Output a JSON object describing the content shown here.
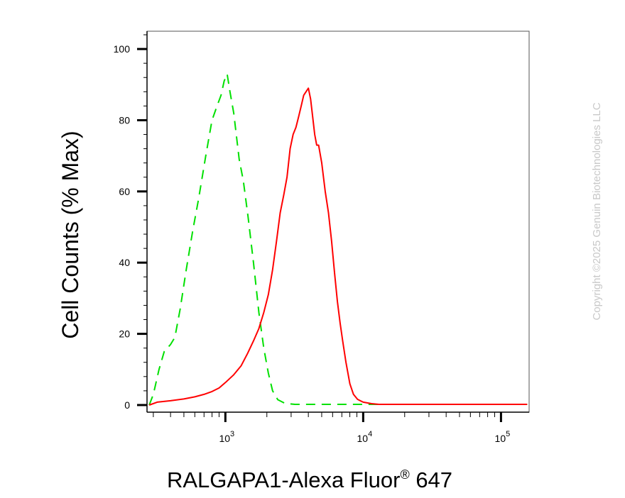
{
  "chart_data": {
    "type": "line",
    "xlabel": "RALGAPA1-Alexa Fluor",
    "xlabel_reg": "®",
    "xlabel_suffix": " 647",
    "ylabel": "Cell Counts (% Max)",
    "x_scale": "log",
    "xlim": [
      270,
      160000
    ],
    "ylim": [
      -2,
      105
    ],
    "y_ticks": [
      0,
      20,
      40,
      60,
      80,
      100
    ],
    "x_ticks": [
      {
        "value": 1000,
        "base": "10",
        "exp": "3"
      },
      {
        "value": 10000,
        "base": "10",
        "exp": "4"
      },
      {
        "value": 100000,
        "base": "10",
        "exp": "5"
      }
    ],
    "grid": false,
    "legend": "none",
    "series": [
      {
        "color": "#00e000",
        "style": "dashed",
        "points": [
          [
            280,
            0
          ],
          [
            300,
            3
          ],
          [
            330,
            10
          ],
          [
            360,
            15
          ],
          [
            400,
            17
          ],
          [
            430,
            19
          ],
          [
            470,
            27
          ],
          [
            520,
            38
          ],
          [
            580,
            49
          ],
          [
            640,
            58
          ],
          [
            720,
            70
          ],
          [
            800,
            80
          ],
          [
            870,
            84
          ],
          [
            930,
            87
          ],
          [
            980,
            91
          ],
          [
            1030,
            93
          ],
          [
            1080,
            88
          ],
          [
            1150,
            82
          ],
          [
            1260,
            69
          ],
          [
            1350,
            63
          ],
          [
            1460,
            53
          ],
          [
            1600,
            40
          ],
          [
            1750,
            26
          ],
          [
            1900,
            16
          ],
          [
            2050,
            9
          ],
          [
            2200,
            4
          ],
          [
            2400,
            1.5
          ],
          [
            2700,
            0.5
          ],
          [
            3200,
            0.2
          ],
          [
            5000,
            0.2
          ],
          [
            20000,
            0.2
          ],
          [
            155000,
            0.2
          ]
        ]
      },
      {
        "color": "#ff0000",
        "style": "solid",
        "points": [
          [
            280,
            0
          ],
          [
            320,
            0.8
          ],
          [
            400,
            1.2
          ],
          [
            500,
            1.7
          ],
          [
            600,
            2.3
          ],
          [
            700,
            3
          ],
          [
            800,
            3.8
          ],
          [
            900,
            4.8
          ],
          [
            1000,
            6.3
          ],
          [
            1150,
            8.5
          ],
          [
            1300,
            11
          ],
          [
            1450,
            14.5
          ],
          [
            1600,
            18
          ],
          [
            1750,
            21.5
          ],
          [
            1900,
            26
          ],
          [
            2050,
            31
          ],
          [
            2200,
            38
          ],
          [
            2350,
            46
          ],
          [
            2500,
            54
          ],
          [
            2650,
            59
          ],
          [
            2800,
            64
          ],
          [
            2950,
            72
          ],
          [
            3100,
            76
          ],
          [
            3250,
            78
          ],
          [
            3400,
            81
          ],
          [
            3550,
            84
          ],
          [
            3700,
            87
          ],
          [
            3850,
            88
          ],
          [
            4000,
            89
          ],
          [
            4150,
            86
          ],
          [
            4300,
            81
          ],
          [
            4450,
            76
          ],
          [
            4600,
            73
          ],
          [
            4750,
            73
          ],
          [
            5000,
            68
          ],
          [
            5300,
            60
          ],
          [
            5600,
            54
          ],
          [
            5900,
            46
          ],
          [
            6200,
            37
          ],
          [
            6500,
            29
          ],
          [
            6800,
            23
          ],
          [
            7100,
            18
          ],
          [
            7500,
            12
          ],
          [
            8000,
            6
          ],
          [
            8500,
            3
          ],
          [
            9100,
            1.6
          ],
          [
            10000,
            0.8
          ],
          [
            11500,
            0.4
          ],
          [
            13000,
            0.2
          ],
          [
            20000,
            0.2
          ],
          [
            155000,
            0.2
          ]
        ]
      }
    ]
  },
  "copyright": "Copyright ©2025 Genuin Biotechnologies LLC"
}
